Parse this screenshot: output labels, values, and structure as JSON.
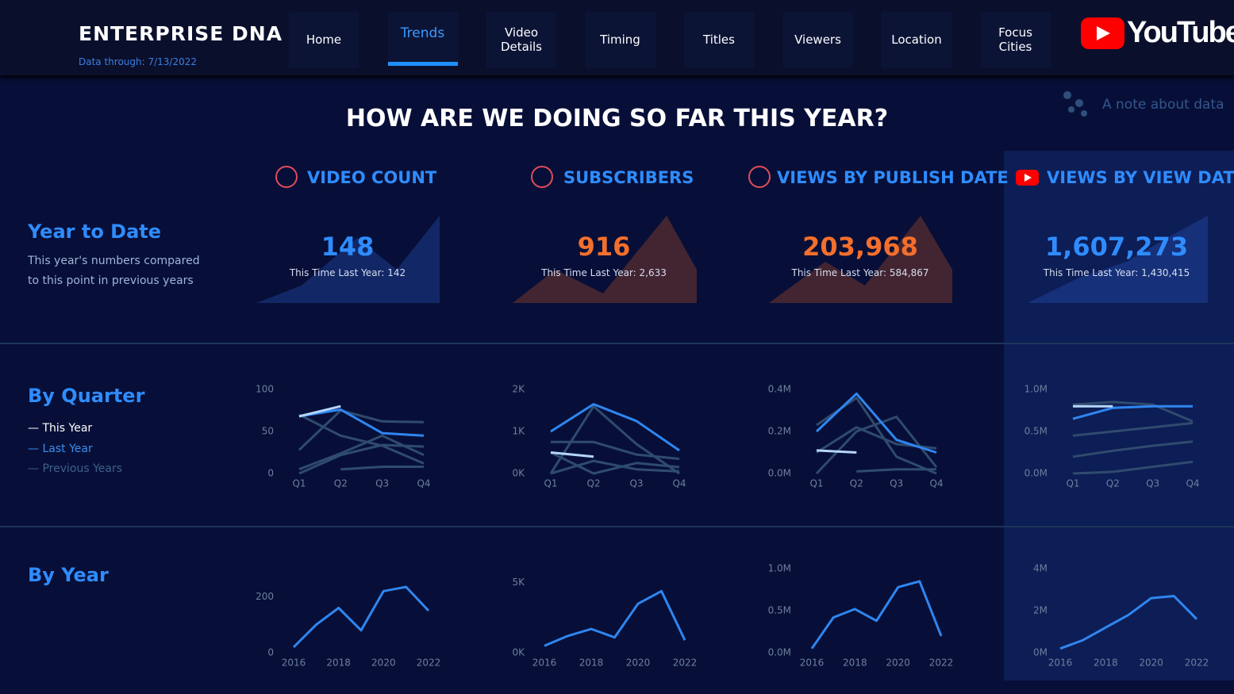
{
  "header": {
    "brand": "ENTERPRISE DNA",
    "data_through": "Data through: 7/13/2022",
    "logo": "YouTube"
  },
  "nav": {
    "items": [
      "Home",
      "Trends",
      "Video Details",
      "Timing",
      "Titles",
      "Viewers",
      "Location",
      "Focus Cities"
    ],
    "active": 1
  },
  "note": "A note about data",
  "heading": "HOW ARE WE DOING SO FAR THIS YEAR?",
  "rows": [
    {
      "title": "Year to Date",
      "text": [
        "This year's numbers compared",
        "to this point in previous years"
      ]
    },
    {
      "title": "By Quarter"
    },
    {
      "title": "By Year"
    }
  ],
  "legend": [
    {
      "label": "— This Year",
      "color": "#ffffff"
    },
    {
      "label": "— Last Year",
      "color": "#3b8ef0"
    },
    {
      "label": "— Previous Years",
      "color": "#3d5f8c"
    }
  ],
  "kpis": [
    {
      "title": "VIDEO COUNT",
      "value": 148,
      "color": "#2f8cff",
      "last_year": "This Time Last Year: 142"
    },
    {
      "title": "SUBSCRIBERS",
      "value": 916,
      "color": "#f36f2c",
      "last_year": "This Time Last Year: 2,633"
    },
    {
      "title": "VIEWS BY PUBLISH DATE",
      "value": 203968,
      "value_label": "203,968",
      "color": "#f36f2c",
      "last_year": "This Time Last Year: 584,867"
    },
    {
      "title": "VIEWS BY VIEW DATE",
      "value": 1607273,
      "value_label": "1,607,273",
      "color": "#2f8cff",
      "last_year": "This Time Last Year: 1,430,415"
    }
  ],
  "chart_data": [
    {
      "type": "line",
      "categories": [
        "Q1",
        "Q2",
        "Q3",
        "Q4"
      ],
      "ylim": [
        0,
        100
      ],
      "yticks": [
        0,
        50,
        100
      ],
      "series": [
        {
          "color": "#2f4b6e",
          "values": [
            28,
            75,
            62,
            61
          ]
        },
        {
          "color": "#2f4b6e",
          "values": [
            70,
            45,
            33,
            12
          ]
        },
        {
          "color": "#2f4b6e",
          "values": [
            5,
            24,
            45,
            22
          ]
        },
        {
          "color": "#2f4b6e",
          "values": [
            0,
            22,
            34,
            32
          ]
        },
        {
          "color": "#2f4b6e",
          "values": [
            null,
            5,
            8,
            8
          ]
        },
        {
          "color": "#2f86f0",
          "values": [
            68,
            76,
            48,
            45
          ]
        },
        {
          "color": "#b5d6fa",
          "values": [
            68,
            80,
            null,
            null
          ]
        }
      ]
    },
    {
      "type": "line",
      "categories": [
        "Q1",
        "Q2",
        "Q3",
        "Q4"
      ],
      "ylim": [
        0,
        2000
      ],
      "yticks": [
        {
          "value": 0,
          "label": "0K"
        },
        {
          "value": 1000,
          "label": "1K"
        },
        {
          "value": 2000,
          "label": "2K"
        }
      ],
      "series": [
        {
          "color": "#2f4b6e",
          "values": [
            750,
            750,
            450,
            350
          ]
        },
        {
          "color": "#2f4b6e",
          "values": [
            0,
            1600,
            700,
            0
          ]
        },
        {
          "color": "#2f4b6e",
          "values": [
            500,
            0,
            250,
            150
          ]
        },
        {
          "color": "#2f4b6e",
          "values": [
            0,
            300,
            100,
            50
          ]
        },
        {
          "color": "#2f86f0",
          "values": [
            1000,
            1650,
            1250,
            550
          ]
        },
        {
          "color": "#b5d6fa",
          "values": [
            500,
            400,
            null,
            null
          ]
        }
      ]
    },
    {
      "type": "line",
      "categories": [
        "Q1",
        "Q2",
        "Q3",
        "Q4"
      ],
      "ylim": [
        0,
        400000
      ],
      "yticks": [
        {
          "value": 0,
          "label": "0.0M"
        },
        {
          "value": 200000,
          "label": "0.2M"
        },
        {
          "value": 400000,
          "label": "0.4M"
        }
      ],
      "series": [
        {
          "color": "#2f4b6e",
          "values": [
            230000,
            360000,
            80000,
            0
          ]
        },
        {
          "color": "#2f4b6e",
          "values": [
            0,
            200000,
            270000,
            30000
          ]
        },
        {
          "color": "#2f4b6e",
          "values": [
            100000,
            220000,
            140000,
            120000
          ]
        },
        {
          "color": "#2f4b6e",
          "values": [
            null,
            10000,
            20000,
            20000
          ]
        },
        {
          "color": "#2f86f0",
          "values": [
            200000,
            380000,
            160000,
            100000
          ]
        },
        {
          "color": "#b5d6fa",
          "values": [
            110000,
            100000,
            null,
            null
          ]
        }
      ]
    },
    {
      "type": "line",
      "categories": [
        "Q1",
        "Q2",
        "Q3",
        "Q4"
      ],
      "ylim": [
        0,
        1000000
      ],
      "yticks": [
        {
          "value": 0,
          "label": "0.0M"
        },
        {
          "value": 500000,
          "label": "0.5M"
        },
        {
          "value": 1000000,
          "label": "1.0M"
        }
      ],
      "series": [
        {
          "color": "#2f4b6e",
          "values": [
            820000,
            850000,
            820000,
            620000
          ]
        },
        {
          "color": "#2f4b6e",
          "values": [
            450000,
            500000,
            550000,
            600000
          ]
        },
        {
          "color": "#2f4b6e",
          "values": [
            200000,
            270000,
            330000,
            380000
          ]
        },
        {
          "color": "#2f4b6e",
          "values": [
            0,
            20000,
            80000,
            140000
          ]
        },
        {
          "color": "#2f86f0",
          "values": [
            650000,
            780000,
            800000,
            800000
          ]
        },
        {
          "color": "#b5d6fa",
          "values": [
            800000,
            800000,
            null,
            null
          ]
        }
      ]
    },
    {
      "type": "line",
      "x": [
        2016,
        2017,
        2018,
        2019,
        2020,
        2021,
        2022
      ],
      "xlim": [
        2016,
        2022
      ],
      "xticks": [
        2016,
        2018,
        2020,
        2022
      ],
      "ylim": [
        0,
        300
      ],
      "yticks": [
        0,
        200
      ],
      "color": "#2f86f0",
      "values": [
        20,
        100,
        160,
        80,
        220,
        235,
        150
      ]
    },
    {
      "type": "line",
      "x": [
        2016,
        2017,
        2018,
        2019,
        2020,
        2021,
        2022
      ],
      "xlim": [
        2016,
        2022
      ],
      "xticks": [
        2016,
        2018,
        2020,
        2022
      ],
      "ylim": [
        0,
        6000
      ],
      "yticks": [
        {
          "value": 0,
          "label": "0K"
        },
        {
          "value": 5000,
          "label": "5K"
        }
      ],
      "color": "#2f86f0",
      "values": [
        500,
        1200,
        1700,
        1100,
        3500,
        4400,
        900
      ]
    },
    {
      "type": "line",
      "x": [
        2016,
        2017,
        2018,
        2019,
        2020,
        2021,
        2022
      ],
      "xlim": [
        2016,
        2022
      ],
      "xticks": [
        2016,
        2018,
        2020,
        2022
      ],
      "ylim": [
        0,
        1000000
      ],
      "yticks": [
        {
          "value": 0,
          "label": "0.0M"
        },
        {
          "value": 500000,
          "label": "0.5M"
        },
        {
          "value": 1000000,
          "label": "1.0M"
        }
      ],
      "color": "#2f86f0",
      "values": [
        50000,
        420000,
        520000,
        380000,
        780000,
        850000,
        200000
      ]
    },
    {
      "type": "line",
      "x": [
        2016,
        2017,
        2018,
        2019,
        2020,
        2021,
        2022
      ],
      "xlim": [
        2016,
        2022
      ],
      "xticks": [
        2016,
        2018,
        2020,
        2022
      ],
      "ylim": [
        0,
        4000000
      ],
      "yticks": [
        {
          "value": 0,
          "label": "0M"
        },
        {
          "value": 2000000,
          "label": "2M"
        },
        {
          "value": 4000000,
          "label": "4M"
        }
      ],
      "color": "#2f86f0",
      "values": [
        200000,
        600000,
        1200000,
        1800000,
        2600000,
        2700000,
        1600000
      ]
    }
  ]
}
